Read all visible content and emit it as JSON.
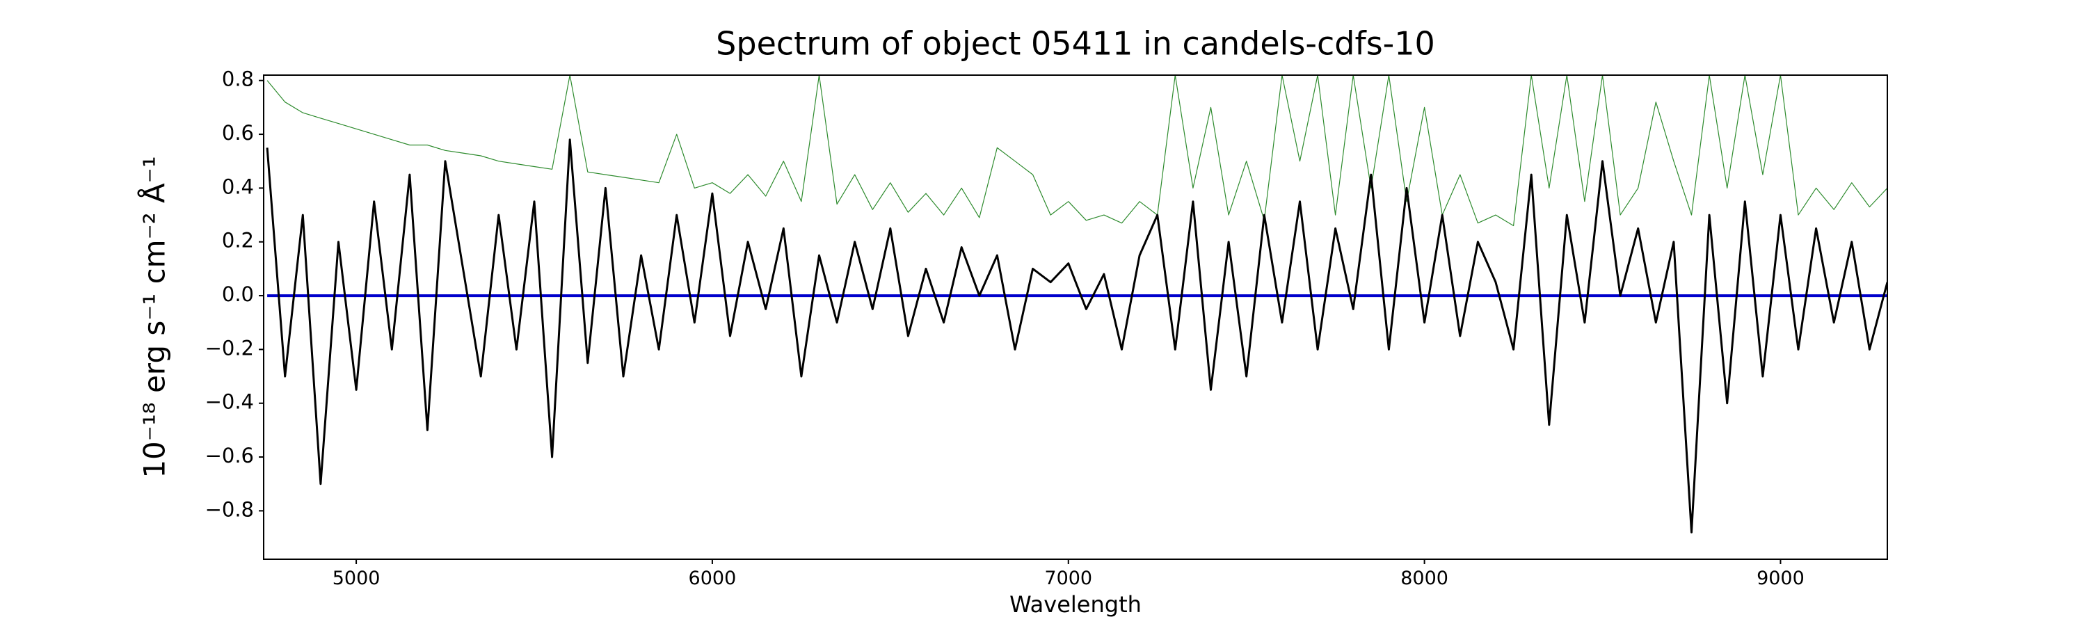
{
  "chart_data": {
    "type": "line",
    "title": "Spectrum of object 05411 in candels-cdfs-10",
    "xlabel": "Wavelength",
    "ylabel": "10⁻¹⁸ erg s⁻¹ cm⁻² Å⁻¹",
    "x": [
      4750,
      4800,
      4850,
      4900,
      4950,
      5000,
      5050,
      5100,
      5150,
      5200,
      5250,
      5300,
      5350,
      5400,
      5450,
      5500,
      5550,
      5600,
      5650,
      5700,
      5750,
      5800,
      5850,
      5900,
      5950,
      6000,
      6050,
      6100,
      6150,
      6200,
      6250,
      6300,
      6350,
      6400,
      6450,
      6500,
      6550,
      6600,
      6650,
      6700,
      6750,
      6800,
      6850,
      6900,
      6950,
      7000,
      7050,
      7100,
      7150,
      7200,
      7250,
      7300,
      7350,
      7400,
      7450,
      7500,
      7550,
      7600,
      7650,
      7700,
      7750,
      7800,
      7850,
      7900,
      7950,
      8000,
      8050,
      8100,
      8150,
      8200,
      8250,
      8300,
      8350,
      8400,
      8450,
      8500,
      8550,
      8600,
      8650,
      8700,
      8750,
      8800,
      8850,
      8900,
      8950,
      9000,
      9050,
      9100,
      9150,
      9200,
      9250,
      9300
    ],
    "series": [
      {
        "color": "#2e8b2e",
        "width": 1.2,
        "values": [
          0.8,
          0.72,
          0.68,
          0.66,
          0.64,
          0.62,
          0.6,
          0.58,
          0.56,
          0.56,
          0.54,
          0.53,
          0.52,
          0.5,
          0.49,
          0.48,
          0.47,
          0.82,
          0.46,
          0.45,
          0.44,
          0.43,
          0.42,
          0.6,
          0.4,
          0.42,
          0.38,
          0.45,
          0.37,
          0.5,
          0.35,
          0.82,
          0.34,
          0.45,
          0.32,
          0.42,
          0.31,
          0.38,
          0.3,
          0.4,
          0.29,
          0.55,
          0.5,
          0.45,
          0.3,
          0.35,
          0.28,
          0.3,
          0.27,
          0.35,
          0.3,
          0.82,
          0.4,
          0.7,
          0.3,
          0.5,
          0.28,
          0.82,
          0.5,
          0.82,
          0.3,
          0.82,
          0.4,
          0.82,
          0.35,
          0.7,
          0.3,
          0.45,
          0.27,
          0.3,
          0.26,
          0.82,
          0.4,
          0.82,
          0.35,
          0.82,
          0.3,
          0.4,
          0.72,
          0.5,
          0.3,
          0.82,
          0.4,
          0.82,
          0.45,
          0.82,
          0.3,
          0.4,
          0.32,
          0.42,
          0.33,
          0.4
        ]
      },
      {
        "color": "#0000cc",
        "width": 4,
        "x": [
          4750,
          9300
        ],
        "values": [
          0,
          0
        ]
      },
      {
        "color": "#000000",
        "width": 3,
        "values": [
          0.55,
          -0.3,
          0.3,
          -0.7,
          0.2,
          -0.35,
          0.35,
          -0.2,
          0.45,
          -0.5,
          0.5,
          0.1,
          -0.3,
          0.3,
          -0.2,
          0.35,
          -0.6,
          0.58,
          -0.25,
          0.4,
          -0.3,
          0.15,
          -0.2,
          0.3,
          -0.1,
          0.38,
          -0.15,
          0.2,
          -0.05,
          0.25,
          -0.3,
          0.15,
          -0.1,
          0.2,
          -0.05,
          0.25,
          -0.15,
          0.1,
          -0.1,
          0.18,
          0.0,
          0.15,
          -0.2,
          0.1,
          0.05,
          0.12,
          -0.05,
          0.08,
          -0.2,
          0.15,
          0.3,
          -0.2,
          0.35,
          -0.35,
          0.2,
          -0.3,
          0.3,
          -0.1,
          0.35,
          -0.2,
          0.25,
          -0.05,
          0.45,
          -0.2,
          0.4,
          -0.1,
          0.3,
          -0.15,
          0.2,
          0.05,
          -0.2,
          0.45,
          -0.48,
          0.3,
          -0.1,
          0.5,
          0.0,
          0.25,
          -0.1,
          0.2,
          -0.88,
          0.3,
          -0.4,
          0.35,
          -0.3,
          0.3,
          -0.2,
          0.25,
          -0.1,
          0.2,
          -0.2,
          0.05
        ]
      }
    ],
    "xlim": [
      4740,
      9300
    ],
    "ylim": [
      -0.98,
      0.82
    ],
    "xticks": [
      5000,
      6000,
      7000,
      8000,
      9000
    ],
    "yticks": [
      {
        "value": -0.8,
        "label": "−0.8"
      },
      {
        "value": -0.6,
        "label": "−0.6"
      },
      {
        "value": -0.4,
        "label": "−0.4"
      },
      {
        "value": -0.2,
        "label": "−0.2"
      },
      {
        "value": 0,
        "label": "0.0"
      },
      0.2,
      0.4,
      0.6,
      0.8
    ]
  }
}
